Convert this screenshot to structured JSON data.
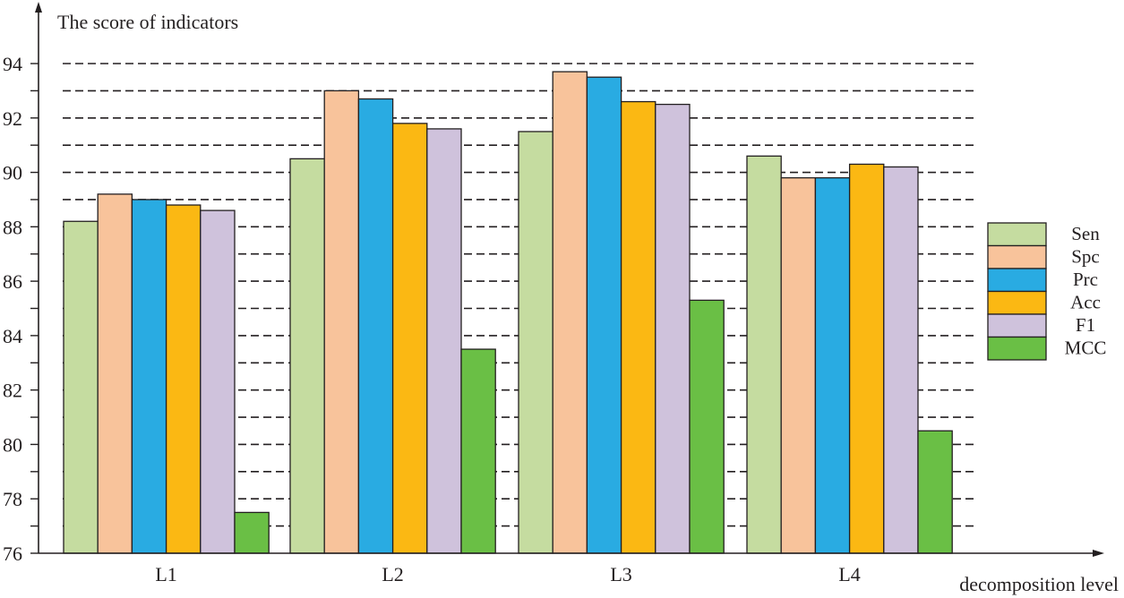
{
  "chart_data": {
    "type": "bar",
    "ylabel": "The score of indicators",
    "xlabel": "decomposition level",
    "categories": [
      "L1",
      "L2",
      "L3",
      "L4"
    ],
    "ylim": [
      76,
      94
    ],
    "yticks": [
      76,
      78,
      80,
      82,
      84,
      86,
      88,
      90,
      92,
      94
    ],
    "ytick_labels": [
      "76",
      "78",
      "80",
      "82",
      "84",
      "86",
      "88",
      "90",
      "92",
      "94"
    ],
    "grid": true,
    "legend_position": "right",
    "series": [
      {
        "name": "Sen",
        "color": "#c5dca0",
        "values": [
          88.2,
          90.5,
          91.5,
          90.6
        ]
      },
      {
        "name": "Spc",
        "color": "#f8c39b",
        "values": [
          89.2,
          93.0,
          93.7,
          89.8
        ]
      },
      {
        "name": "Prc",
        "color": "#29abe2",
        "values": [
          89.0,
          92.7,
          93.5,
          89.8
        ]
      },
      {
        "name": "Acc",
        "color": "#fbb813",
        "values": [
          88.8,
          91.8,
          92.6,
          90.3
        ]
      },
      {
        "name": "F1",
        "color": "#cfc2dc",
        "values": [
          88.6,
          91.6,
          92.5,
          90.2
        ]
      },
      {
        "name": "MCC",
        "color": "#6abf45",
        "values": [
          77.5,
          83.5,
          85.3,
          80.5
        ]
      }
    ]
  }
}
